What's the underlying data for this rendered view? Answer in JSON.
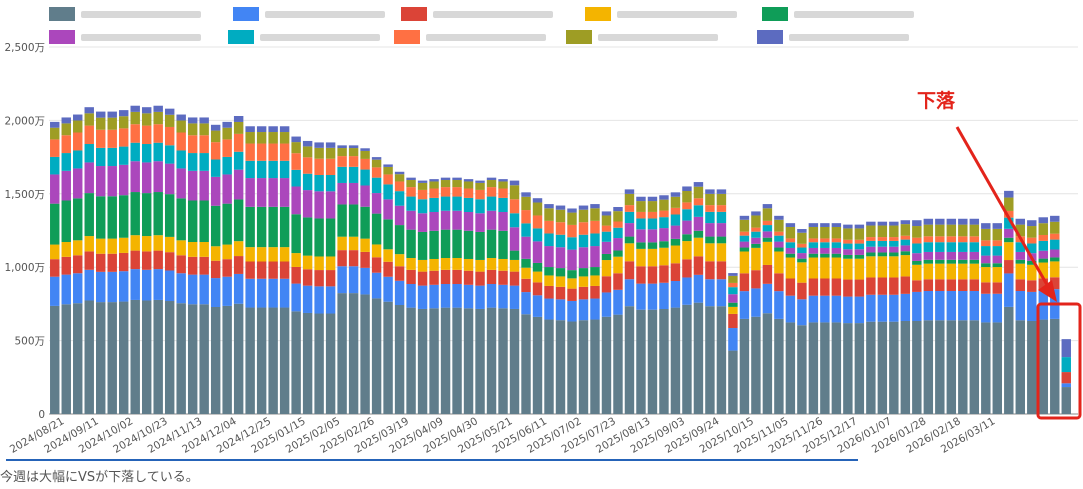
{
  "chart_data": {
    "type": "bar",
    "stacked": true,
    "title": "",
    "xlabel": "",
    "ylabel": "",
    "ylim": [
      0,
      25000000
    ],
    "y_ticks": [
      "0",
      "500万",
      "1,000万",
      "1,500万",
      "2,000万",
      "2,500万"
    ],
    "grid": true,
    "legend_position": "top",
    "legend_labels_visible": false,
    "x_tick_labels": [
      "2024/08/21",
      "2024/09/11",
      "2024/10/02",
      "2024/10/23",
      "2024/11/13",
      "2024/12/04",
      "2024/12/25",
      "2025/01/15",
      "2025/02/05",
      "2025/02/26",
      "2025/03/19",
      "2025/04/09",
      "2025/04/30",
      "2025/05/21",
      "2025/06/11",
      "2025/07/02",
      "2025/07/23",
      "2025/08/13",
      "2025/09/03",
      "2025/09/24",
      "2025/10/15",
      "2025/11/05",
      "2025/11/26",
      "2025/12/17",
      "2026/01/07",
      "2026/01/28",
      "2026/02/18",
      "2026/03/11"
    ],
    "series_colors": [
      "#607d8b",
      "#4285f4",
      "#db4437",
      "#f4b400",
      "#0f9d58",
      "#ab47bc",
      "#00acc1",
      "#ff7043",
      "#9e9d24",
      "#5c6bc0"
    ],
    "totals": [
      19.9,
      20.2,
      20.4,
      20.9,
      20.6,
      20.6,
      20.7,
      21.0,
      20.9,
      21.0,
      20.8,
      20.4,
      20.2,
      20.2,
      19.7,
      19.9,
      20.3,
      19.6,
      19.6,
      19.6,
      19.6,
      18.9,
      18.6,
      18.5,
      18.5,
      18.3,
      18.3,
      18.1,
      17.5,
      17.0,
      16.5,
      16.1,
      15.9,
      16.0,
      16.1,
      16.1,
      16.0,
      15.9,
      16.1,
      16.0,
      15.9,
      15.1,
      14.7,
      14.3,
      14.2,
      14.0,
      14.2,
      14.3,
      13.8,
      14.1,
      15.3,
      14.8,
      14.8,
      14.9,
      15.1,
      15.5,
      15.8,
      15.3,
      15.3,
      9.6,
      13.5,
      13.8,
      14.3,
      13.5,
      13.0,
      12.6,
      13.0,
      13.0,
      13.0,
      12.9,
      12.9,
      13.1,
      13.1,
      13.1,
      13.2,
      13.2,
      13.3,
      13.3,
      13.3,
      13.3,
      13.3,
      13.0,
      13.0,
      15.2,
      13.3,
      13.2,
      13.4,
      13.5,
      5.1
    ],
    "shares": {
      "2024-08": [
        0.37,
        0.1,
        0.06,
        0.05,
        0.14,
        0.1,
        0.06,
        0.06,
        0.04,
        0.02
      ],
      "2025-03": [
        0.45,
        0.1,
        0.06,
        0.05,
        0.12,
        0.08,
        0.06,
        0.04,
        0.03,
        0.01
      ],
      "2025-06": [
        0.45,
        0.1,
        0.06,
        0.05,
        0.04,
        0.1,
        0.06,
        0.06,
        0.06,
        0.02
      ],
      "2025-08": [
        0.48,
        0.12,
        0.08,
        0.08,
        0.03,
        0.06,
        0.05,
        0.03,
        0.05,
        0.02
      ],
      "2025-09-24": [
        0.45,
        0.16,
        0.1,
        0.05,
        0.03,
        0.06,
        0.05,
        0.03,
        0.05,
        0.02
      ],
      "2025-10": [
        0.48,
        0.14,
        0.09,
        0.11,
        0.02,
        0.03,
        0.03,
        0.02,
        0.06,
        0.02
      ],
      "2026-02": [
        0.48,
        0.15,
        0.06,
        0.08,
        0.02,
        0.04,
        0.05,
        0.03,
        0.06,
        0.03
      ],
      "2026-03-11": [
        0.36,
        0.05,
        0.15,
        0.0,
        0.0,
        0.0,
        0.2,
        0.0,
        0.0,
        0.24
      ]
    }
  },
  "annotation": {
    "label": "下落",
    "color": "#e3241b"
  },
  "caption": "今週は大幅にVSが下落している。"
}
